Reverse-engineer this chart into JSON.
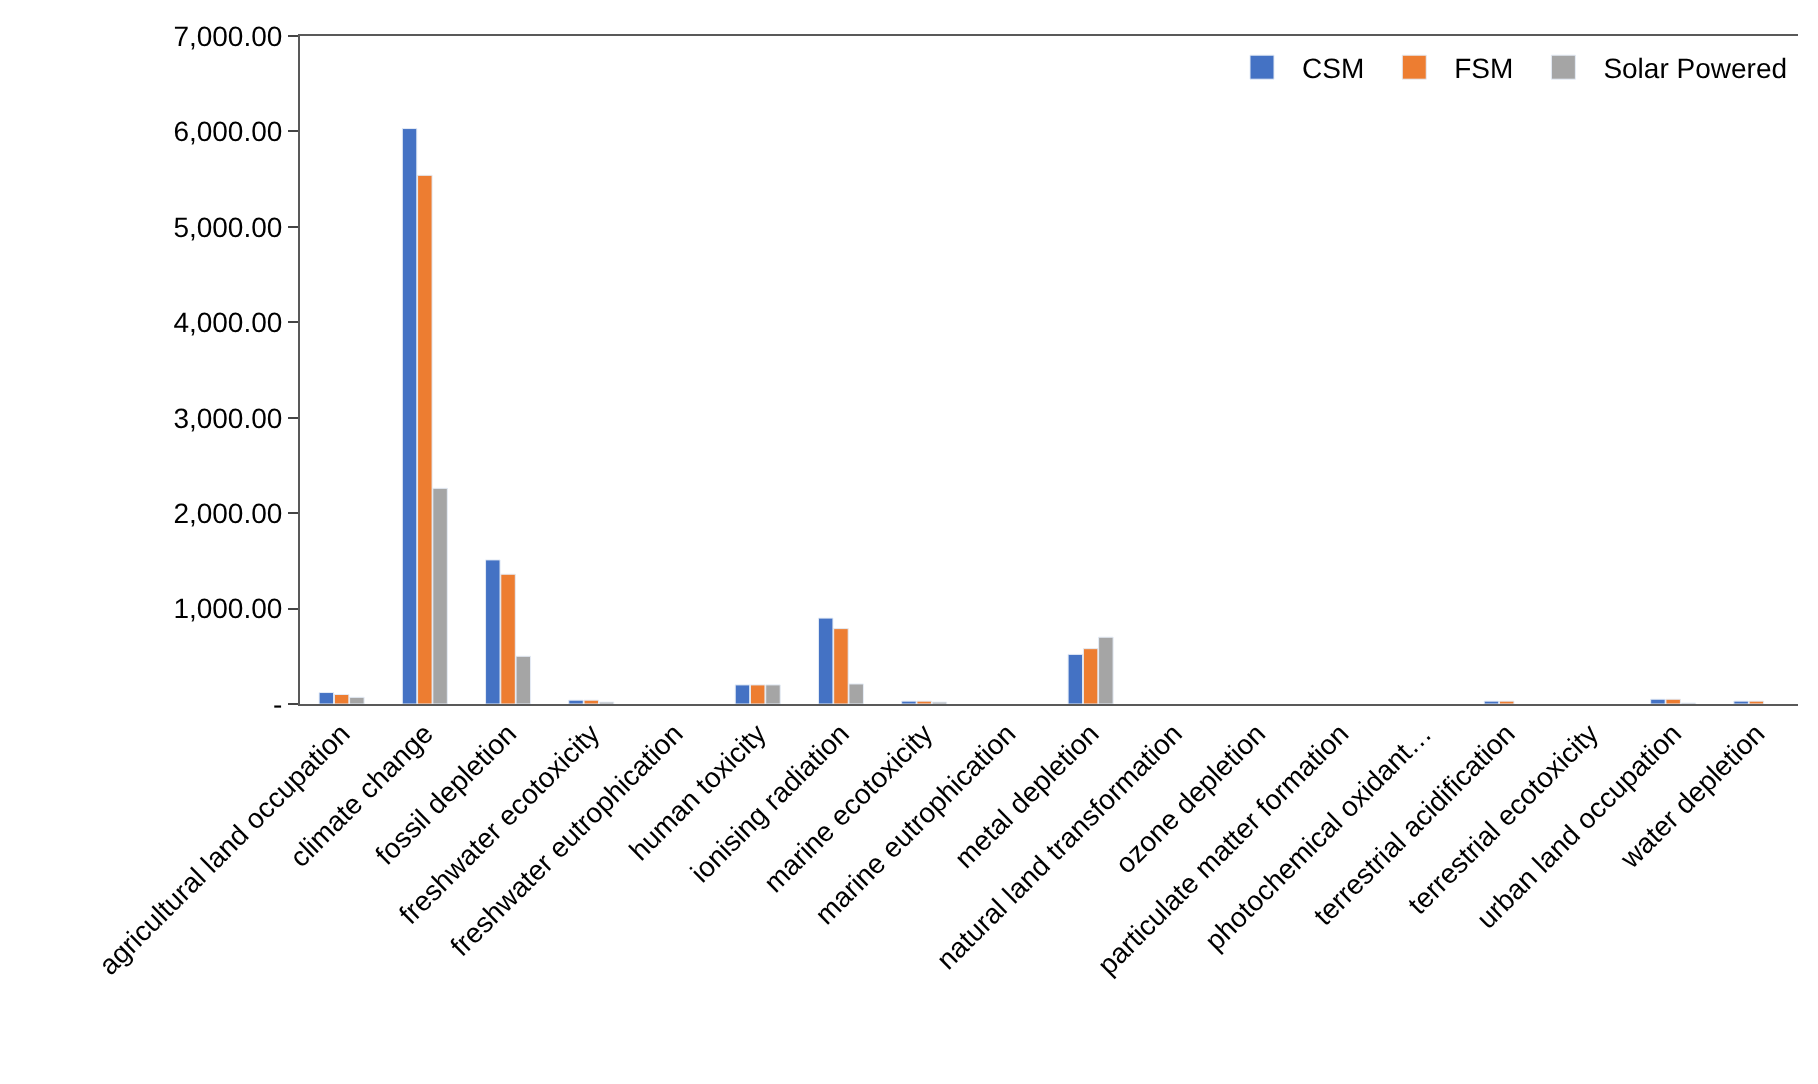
{
  "chart_data": {
    "type": "bar",
    "categories": [
      "agricultural land occupation",
      "climate change",
      "fossil depletion",
      "freshwater ecotoxicity",
      "freshwater eutrophication",
      "human toxicity",
      "ionising radiation",
      "marine ecotoxicity",
      "marine eutrophication",
      "metal depletion",
      "natural land transformation",
      "ozone depletion",
      "particulate matter formation",
      "photochemical oxidant…",
      "terrestrial acidification",
      "terrestrial ecotoxicity",
      "urban land occupation",
      "water depletion"
    ],
    "series": [
      {
        "name": "CSM",
        "color": "#4472c4",
        "values": [
          120,
          6030,
          1510,
          40,
          null,
          200,
          900,
          30,
          null,
          520,
          null,
          null,
          null,
          null,
          30,
          null,
          50,
          30
        ]
      },
      {
        "name": "FSM",
        "color": "#ed7d31",
        "values": [
          100,
          5540,
          1360,
          40,
          null,
          200,
          790,
          30,
          null,
          580,
          null,
          null,
          null,
          null,
          30,
          null,
          50,
          30
        ]
      },
      {
        "name": "Solar Powered",
        "color": "#a5a5a5",
        "values": [
          70,
          2260,
          500,
          20,
          null,
          200,
          210,
          20,
          null,
          700,
          null,
          null,
          null,
          null,
          null,
          null,
          10,
          null
        ]
      }
    ],
    "ylim": [
      0,
      7000
    ],
    "yticks": [
      {
        "value": 0,
        "label": "-"
      },
      {
        "value": 1000,
        "label": "1,000.00"
      },
      {
        "value": 2000,
        "label": "2,000.00"
      },
      {
        "value": 3000,
        "label": "3,000.00"
      },
      {
        "value": 4000,
        "label": "4,000.00"
      },
      {
        "value": 5000,
        "label": "5,000.00"
      },
      {
        "value": 6000,
        "label": "6,000.00"
      },
      {
        "value": 7000,
        "label": "7,000.00"
      }
    ],
    "legend": "top right"
  }
}
